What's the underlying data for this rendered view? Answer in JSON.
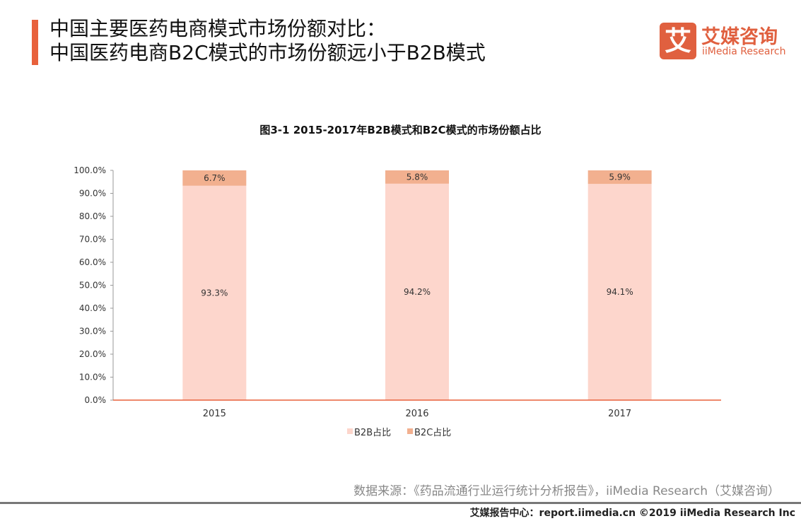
{
  "header": {
    "title_line1": "中国主要医药电商模式市场份额对比：",
    "title_line2": "中国医药电商B2C模式的市场份额远小于B2B模式"
  },
  "logo": {
    "glyph": "艾",
    "name_cn": "艾媒咨询",
    "name_en": "iiMedia Research"
  },
  "colors": {
    "accent": "#e8613c",
    "b2b": "#fdd6cc",
    "b2c": "#f2b08f"
  },
  "chart_data": {
    "type": "bar",
    "stacked": true,
    "title": "图3-1 2015-2017年B2B模式和B2C模式的市场份额占比",
    "categories": [
      "2015",
      "2016",
      "2017"
    ],
    "series": [
      {
        "name": "B2B占比",
        "values": [
          93.3,
          94.2,
          94.1
        ],
        "labels": [
          "93.3%",
          "94.2%",
          "94.1%"
        ]
      },
      {
        "name": "B2C占比",
        "values": [
          6.7,
          5.8,
          5.9
        ],
        "labels": [
          "6.7%",
          "5.8%",
          "5.9%"
        ]
      }
    ],
    "ylim": [
      0,
      100
    ],
    "yticks": [
      "0.0%",
      "10.0%",
      "20.0%",
      "30.0%",
      "40.0%",
      "50.0%",
      "60.0%",
      "70.0%",
      "80.0%",
      "90.0%",
      "100.0%"
    ],
    "grid": false,
    "legend": "bottom"
  },
  "footer": {
    "source": "数据来源：《药品流通行业运行统计分析报告》，iiMedia Research（艾媒咨询）",
    "copyright": "艾媒报告中心：report.iimedia.cn  ©2019  iiMedia Research  Inc"
  }
}
